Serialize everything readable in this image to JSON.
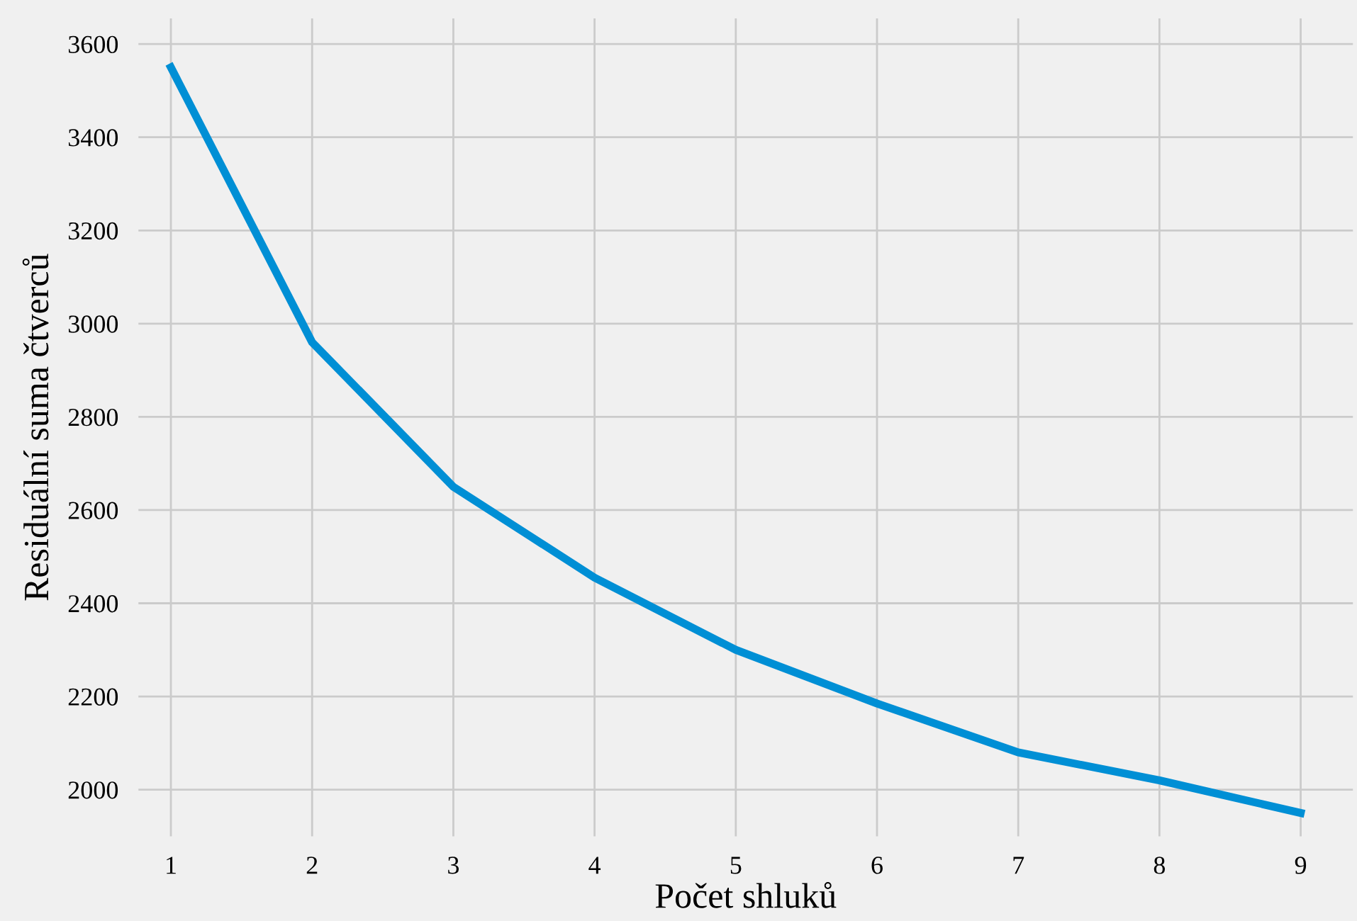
{
  "chart_data": {
    "type": "line",
    "xlabel": "Počet shluků",
    "ylabel": "Residuální suma čtverců",
    "x": [
      1,
      2,
      3,
      4,
      5,
      6,
      7,
      8,
      9
    ],
    "series": [
      {
        "color": "#008fd5",
        "values": [
          3550,
          2960,
          2650,
          2455,
          2300,
          2185,
          2080,
          2020,
          1950
        ]
      }
    ],
    "xlim": [
      0.77,
      9.37
    ],
    "xticks": [
      1,
      2,
      3,
      4,
      5,
      6,
      7,
      8,
      9
    ],
    "ylim": [
      1900,
      3655
    ],
    "yticks": [
      2000,
      2200,
      2400,
      2600,
      2800,
      3000,
      3200,
      3400,
      3600
    ],
    "grid": true,
    "legend": false,
    "marker": "none",
    "line_style": "solid"
  }
}
